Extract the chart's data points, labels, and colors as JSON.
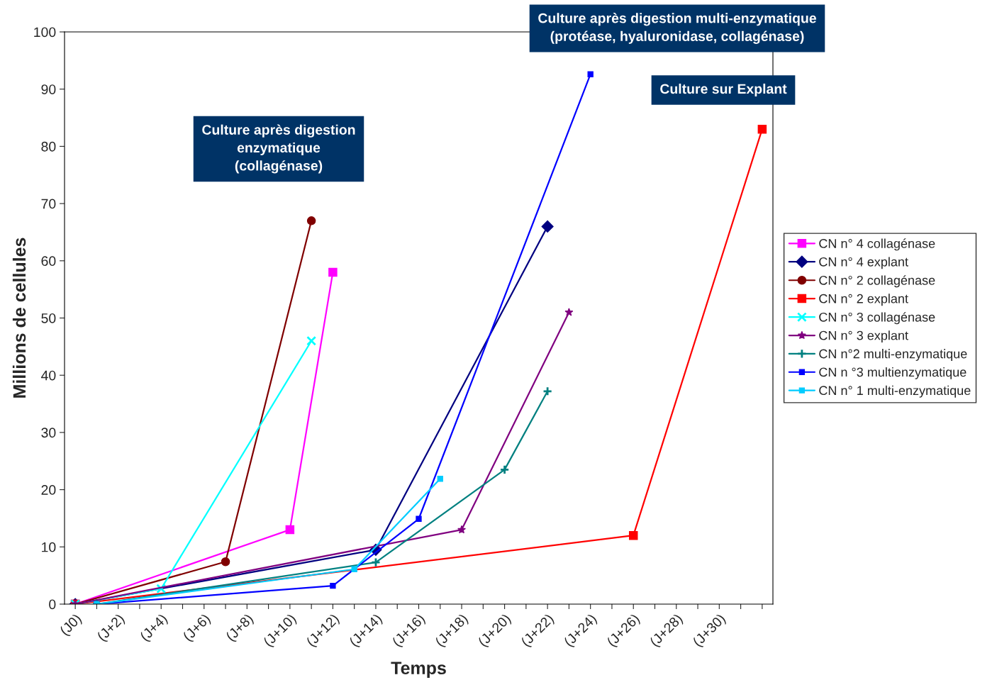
{
  "chart_data": {
    "type": "line",
    "xlabel": "Temps",
    "ylabel": "Millions de cellules",
    "categories": [
      "(J0)",
      null,
      "(J+2)",
      null,
      "(J+4)",
      null,
      "(J+6)",
      null,
      "(J+8)",
      null,
      "(J+10)",
      null,
      "(J+12)",
      null,
      "(J+14)",
      null,
      "(J+16)",
      null,
      "(J+18)",
      null,
      "(J+20)",
      null,
      "(J+22)",
      null,
      "(J+24)",
      null,
      "(J+26)",
      null,
      "(J+28)",
      null,
      "(J+30)",
      null,
      null
    ],
    "ylim": [
      0,
      100
    ],
    "yticks": [
      0,
      10,
      20,
      30,
      40,
      50,
      60,
      70,
      80,
      90,
      100
    ],
    "grid": false,
    "legend": "right",
    "annotations": [
      "Culture après digestion\nenzymatique\n(collagénase)",
      "Culture après digestion multi-enzymatique\n(protéase, hyaluronidase, collagénase)",
      "Culture sur Explant"
    ],
    "series": [
      {
        "name": "CN n° 4 collagénase",
        "color": "#ff00ff",
        "marker": "square",
        "values": [
          0,
          null,
          null,
          null,
          null,
          null,
          null,
          null,
          null,
          null,
          13,
          null,
          58,
          null,
          null,
          null,
          null,
          null,
          null,
          null,
          null,
          null,
          null,
          null,
          null,
          null,
          null,
          null,
          null,
          null,
          null,
          null,
          null
        ]
      },
      {
        "name": "CN n° 4 explant",
        "color": "#000080",
        "marker": "diamond",
        "values": [
          0,
          null,
          null,
          null,
          null,
          null,
          null,
          null,
          null,
          null,
          null,
          null,
          null,
          null,
          9.5,
          null,
          null,
          null,
          null,
          null,
          null,
          null,
          66,
          null,
          null,
          null,
          null,
          null,
          null,
          null,
          null,
          null,
          null
        ]
      },
      {
        "name": "CN n° 2 collagénase",
        "color": "#800000",
        "marker": "circle",
        "values": [
          0,
          null,
          null,
          null,
          null,
          null,
          null,
          7.4,
          null,
          null,
          null,
          67,
          null,
          null,
          null,
          null,
          null,
          null,
          null,
          null,
          null,
          null,
          null,
          null,
          null,
          null,
          null,
          null,
          null,
          null,
          null,
          null,
          null
        ]
      },
      {
        "name": "CN n° 2 explant",
        "color": "#ff0000",
        "marker": "square",
        "values": [
          0,
          null,
          null,
          null,
          null,
          null,
          null,
          null,
          null,
          null,
          null,
          null,
          null,
          null,
          null,
          null,
          null,
          null,
          null,
          null,
          null,
          null,
          null,
          null,
          null,
          null,
          12,
          null,
          null,
          null,
          null,
          null,
          83
        ]
      },
      {
        "name": "CN n° 3 collagénase",
        "color": "#00ffff",
        "marker": "cross",
        "values": [
          0,
          null,
          null,
          null,
          2.7,
          null,
          null,
          null,
          null,
          null,
          null,
          46,
          null,
          null,
          null,
          null,
          null,
          null,
          null,
          null,
          null,
          null,
          null,
          null,
          null,
          null,
          null,
          null,
          null,
          null,
          null,
          null,
          null
        ]
      },
      {
        "name": "CN n° 3 explant",
        "color": "#800080",
        "marker": "star",
        "values": [
          0,
          null,
          null,
          null,
          null,
          null,
          null,
          null,
          null,
          null,
          null,
          null,
          null,
          null,
          null,
          null,
          null,
          null,
          13,
          null,
          null,
          null,
          null,
          51,
          null,
          null,
          null,
          null,
          null,
          null,
          null,
          null,
          null
        ]
      },
      {
        "name": "CN n°2 multi-enzymatique",
        "color": "#008080",
        "marker": "plus",
        "values": [
          null,
          0,
          null,
          null,
          null,
          null,
          null,
          null,
          null,
          null,
          null,
          null,
          null,
          null,
          7.3,
          null,
          null,
          null,
          null,
          null,
          23.5,
          null,
          37.2,
          null,
          null,
          null,
          null,
          null,
          null,
          null,
          null,
          null,
          null
        ]
      },
      {
        "name": "CN n °3 multienzymatique",
        "color": "#0000ff",
        "marker": "square",
        "values": [
          null,
          0,
          null,
          null,
          null,
          null,
          null,
          null,
          null,
          null,
          null,
          null,
          3.2,
          null,
          null,
          null,
          14.9,
          null,
          null,
          null,
          null,
          null,
          null,
          null,
          92.6,
          null,
          null,
          null,
          null,
          null,
          null,
          null,
          null
        ]
      },
      {
        "name": "CN n° 1 multi-enzymatique",
        "color": "#00ccff",
        "marker": "square",
        "values": [
          null,
          0,
          null,
          null,
          null,
          null,
          null,
          null,
          null,
          null,
          null,
          null,
          null,
          6.1,
          null,
          null,
          null,
          21.9,
          null,
          null,
          null,
          null,
          null,
          null,
          null,
          null,
          null,
          null,
          null,
          null,
          null,
          null,
          null
        ]
      }
    ]
  }
}
